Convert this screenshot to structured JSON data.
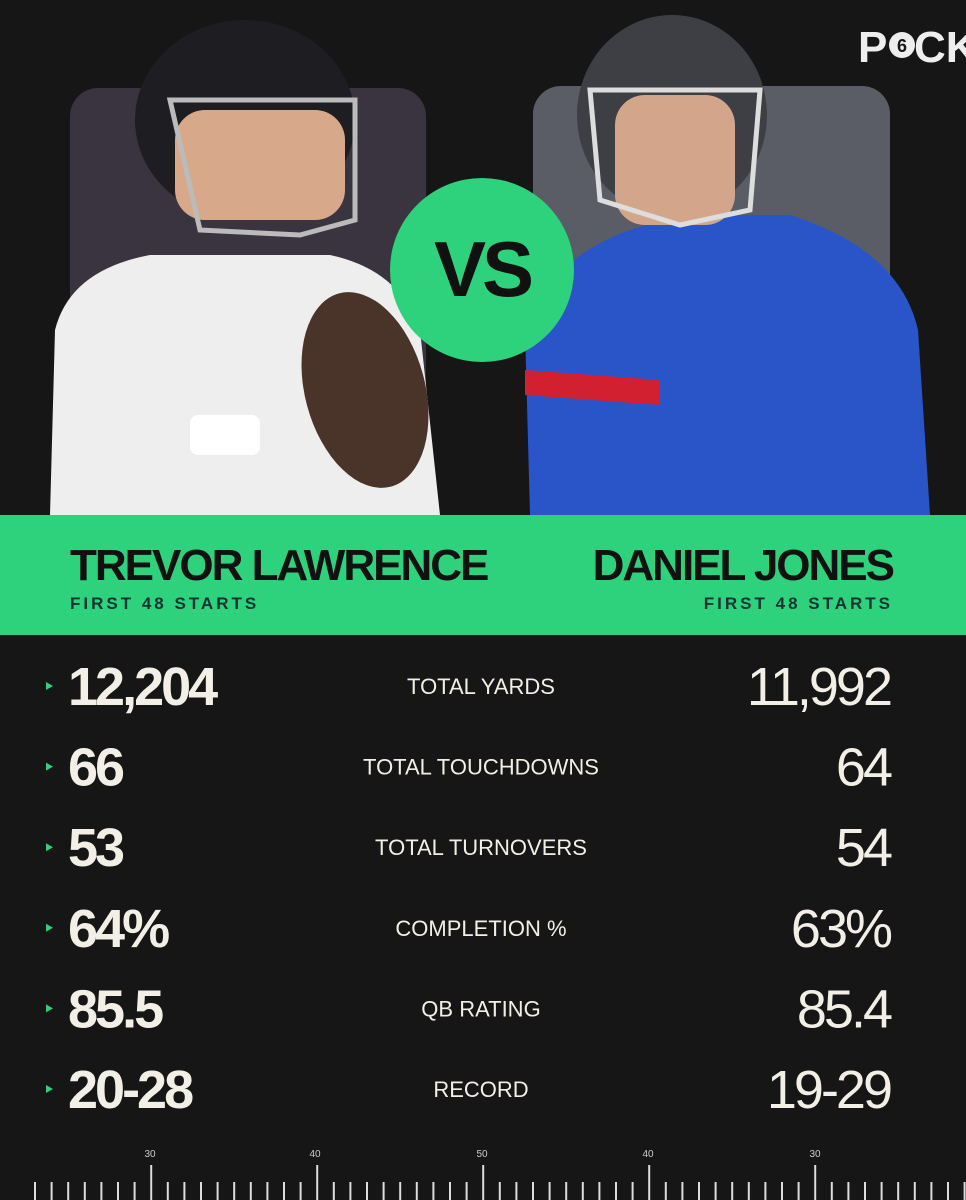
{
  "logo": {
    "parts": [
      "P",
      "6",
      "CK"
    ]
  },
  "vs": "VS",
  "players": [
    {
      "name": "TREVOR LAWRENCE",
      "subtitle": "FIRST 48 STARTS"
    },
    {
      "name": "DANIEL JONES",
      "subtitle": "FIRST 48 STARTS"
    }
  ],
  "stats": [
    {
      "label": "TOTAL YARDS",
      "left": "12,204",
      "right": "11,992"
    },
    {
      "label": "TOTAL TOUCHDOWNS",
      "left": "66",
      "right": "64"
    },
    {
      "label": "TOTAL TURNOVERS",
      "left": "53",
      "right": "54"
    },
    {
      "label": "COMPLETION %",
      "left": "64%",
      "right": "63%"
    },
    {
      "label": "QB RATING",
      "left": "85.5",
      "right": "85.4"
    },
    {
      "label": "RECORD",
      "left": "20-28",
      "right": "19-29"
    }
  ],
  "yard_numbers": [
    "30",
    "40",
    "50",
    "40",
    "30"
  ]
}
